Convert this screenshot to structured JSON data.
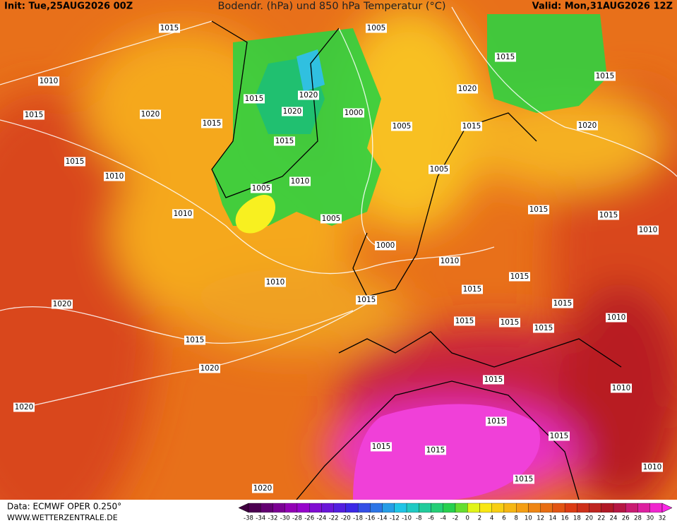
{
  "header": {
    "init": "Init: Tue,25AUG2026 00Z",
    "title": "Bodendr. (hPa) und 850 hPa Temperatur (°C)",
    "valid": "Valid: Mon,31AUG2026 12Z"
  },
  "isobar_labels": [
    "1015",
    "1005",
    "1015",
    "1010",
    "1015",
    "1015",
    "1020",
    "1020",
    "1020",
    "1000",
    "1015",
    "1020",
    "1015",
    "1005",
    "1015",
    "1020",
    "1015",
    "1015",
    "1010",
    "1005",
    "1010",
    "1005",
    "1010",
    "1015",
    "1015",
    "1005",
    "1010",
    "1000",
    "1010",
    "1015",
    "1010",
    "1015",
    "1020",
    "1015",
    "1015",
    "1010",
    "1015",
    "1015",
    "1015",
    "1015",
    "1020",
    "1015",
    "1010",
    "1020",
    "1015",
    "1015",
    "1015",
    "1015",
    "1010",
    "1015",
    "1020"
  ],
  "legend": {
    "labels": [
      "-38",
      "-34",
      "-32",
      "-30",
      "-28",
      "-26",
      "-24",
      "-22",
      "-20",
      "-18",
      "-16",
      "-14",
      "-12",
      "-10",
      "-8",
      "-6",
      "-4",
      "-2",
      "0",
      "2",
      "4",
      "6",
      "8",
      "10",
      "12",
      "14",
      "16",
      "18",
      "20",
      "22",
      "24",
      "26",
      "28",
      "30",
      "32"
    ]
  },
  "footer": {
    "source": "Data: ECMWF OPER 0.250°",
    "site": "WWW.WETTERZENTRALE.DE"
  }
}
